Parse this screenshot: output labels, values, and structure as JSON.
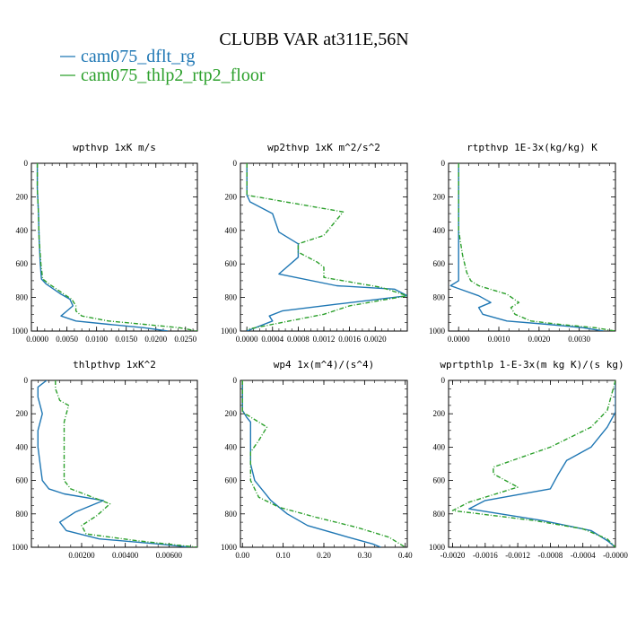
{
  "figure": {
    "title": "CLUBB VAR at311E,56N",
    "legend": [
      {
        "name": "cam075_dflt_rg",
        "color": "#1f77b4",
        "dash": "solid"
      },
      {
        "name": "cam075_thlp2_rtp2_floor",
        "color": "#2ca02c",
        "dash": "dashdot"
      }
    ]
  },
  "chart_data": [
    {
      "type": "line",
      "title": "wpthvp  1xK m/s",
      "xlim": [
        -0.001,
        0.027
      ],
      "ylim": [
        1000,
        0
      ],
      "xticks": [
        0.0,
        0.005,
        0.01,
        0.015,
        0.02,
        0.025
      ],
      "xtick_labels": [
        "0.0000",
        "0.0050",
        "0.0100",
        "0.0150",
        "0.0200",
        "0.0250"
      ],
      "yticks": [
        0,
        200,
        400,
        600,
        800,
        1000
      ],
      "ytick_labels": [
        "0",
        "200",
        "400",
        "600",
        "800",
        "1000"
      ],
      "series": [
        {
          "name": "cam075_dflt_rg",
          "x": [
            0.0,
            0.0,
            0.0002,
            0.0003,
            0.0005,
            0.0007,
            0.0015,
            0.004,
            0.0055,
            0.006,
            0.005,
            0.004,
            0.0065,
            0.012,
            0.018,
            0.022
          ],
          "y": [
            0,
            150,
            300,
            450,
            600,
            690,
            720,
            780,
            810,
            850,
            880,
            910,
            940,
            960,
            980,
            1000
          ]
        },
        {
          "name": "cam075_thlp2_rtp2_floor",
          "x": [
            0.0,
            0.0,
            0.0002,
            0.0003,
            0.0006,
            0.0009,
            0.002,
            0.0045,
            0.0058,
            0.0065,
            0.0065,
            0.0075,
            0.012,
            0.018,
            0.024,
            0.027
          ],
          "y": [
            0,
            150,
            300,
            450,
            600,
            690,
            720,
            780,
            810,
            850,
            880,
            910,
            940,
            960,
            980,
            1000
          ]
        }
      ]
    },
    {
      "type": "line",
      "title": "wp2thvp  1xK m^2/s^2",
      "xlim": [
        -0.0001,
        0.0025
      ],
      "ylim": [
        1000,
        0
      ],
      "xticks": [
        0.0,
        0.0004,
        0.0008,
        0.0012,
        0.0016,
        0.002
      ],
      "xtick_labels": [
        "0.0000",
        "0.0004",
        "0.0008",
        "0.0012",
        "0.0016",
        "0.0020"
      ],
      "yticks": [
        0,
        200,
        400,
        600,
        800,
        1000
      ],
      "ytick_labels": [
        "0",
        "200",
        "400",
        "600",
        "800",
        "1000"
      ],
      "series": [
        {
          "name": "cam075_dflt_rg",
          "x": [
            0.0,
            0.0,
            5e-05,
            0.0004,
            0.0005,
            0.0008,
            0.0008,
            0.0005,
            0.0014,
            0.0023,
            0.0025,
            0.0014,
            0.00055,
            0.00035,
            0.0004,
            0.0002,
            0.0
          ],
          "y": [
            0,
            190,
            230,
            300,
            410,
            480,
            560,
            660,
            730,
            750,
            790,
            840,
            880,
            910,
            940,
            970,
            1000
          ]
        },
        {
          "name": "cam075_thlp2_rtp2_floor",
          "x": [
            0.0,
            0.0,
            0.0015,
            0.0012,
            0.0008,
            0.0008,
            0.0011,
            0.0012,
            0.0012,
            0.0021,
            0.0025,
            0.0016,
            0.0012,
            0.0008,
            0.0004,
            0.0
          ],
          "y": [
            0,
            190,
            290,
            430,
            480,
            530,
            590,
            620,
            680,
            740,
            790,
            850,
            900,
            930,
            960,
            990
          ]
        }
      ]
    },
    {
      "type": "line",
      "title": "rtpthvp  1E-3x(kg/kg) K",
      "xlim": [
        -0.00025,
        0.0039
      ],
      "ylim": [
        1000,
        0
      ],
      "xticks": [
        0.0,
        0.001,
        0.002,
        0.003
      ],
      "xtick_labels": [
        "0.0000",
        "0.0010",
        "0.0020",
        "0.0030"
      ],
      "yticks": [
        0,
        200,
        400,
        600,
        800,
        1000
      ],
      "ytick_labels": [
        "0",
        "200",
        "400",
        "600",
        "800",
        "1000"
      ],
      "series": [
        {
          "name": "cam075_dflt_rg",
          "x": [
            0.0,
            0.0,
            0.0,
            0.0,
            0.0,
            0.0,
            -0.0002,
            0.0005,
            0.0008,
            0.0005,
            0.0006,
            0.0012,
            0.0022,
            0.0031,
            0.0036
          ],
          "y": [
            0,
            250,
            400,
            550,
            650,
            700,
            730,
            790,
            830,
            860,
            900,
            940,
            960,
            980,
            1000
          ]
        },
        {
          "name": "cam075_thlp2_rtp2_floor",
          "x": [
            0.0,
            0.0,
            0.0,
            0.0001,
            0.0002,
            0.0003,
            0.0005,
            0.0012,
            0.0015,
            0.0013,
            0.0014,
            0.0018,
            0.0025,
            0.0034,
            0.0039
          ],
          "y": [
            0,
            250,
            400,
            550,
            650,
            700,
            730,
            780,
            830,
            860,
            900,
            940,
            960,
            980,
            1000
          ]
        }
      ]
    },
    {
      "type": "line",
      "title": "thlpthvp  1xK^2",
      "xlim": [
        -0.0003,
        0.0073
      ],
      "ylim": [
        1000,
        0
      ],
      "xticks": [
        0.002,
        0.004,
        0.006
      ],
      "xtick_labels": [
        "0.00200",
        "0.00400",
        "0.00600"
      ],
      "yticks": [
        0,
        200,
        400,
        600,
        800,
        1000
      ],
      "ytick_labels": [
        "0",
        "200",
        "400",
        "600",
        "800",
        "1000"
      ],
      "series": [
        {
          "name": "cam075_dflt_rg",
          "x": [
            0.0004,
            0.0,
            0.0,
            0.0002,
            0.0,
            0.0,
            0.0001,
            0.0002,
            0.0005,
            0.0012,
            0.003,
            0.0017,
            0.001,
            0.0013,
            0.0028,
            0.0055,
            0.007
          ],
          "y": [
            0,
            40,
            100,
            200,
            300,
            400,
            500,
            600,
            650,
            680,
            720,
            790,
            850,
            900,
            950,
            980,
            1000
          ]
        },
        {
          "name": "cam075_thlp2_rtp2_floor",
          "x": [
            0.0008,
            0.0008,
            0.001,
            0.0014,
            0.0012,
            0.0012,
            0.0012,
            0.0012,
            0.0015,
            0.0033,
            0.0027,
            0.002,
            0.0022,
            0.0045,
            0.0073
          ],
          "y": [
            0,
            50,
            120,
            150,
            250,
            400,
            500,
            600,
            650,
            740,
            810,
            870,
            920,
            960,
            1000
          ]
        }
      ]
    },
    {
      "type": "line",
      "title": "wp4  1x(m^4)/(s^4)",
      "xlim": [
        -0.005,
        0.405
      ],
      "ylim": [
        1000,
        0
      ],
      "xticks": [
        0.0,
        0.1,
        0.2,
        0.3,
        0.4
      ],
      "xtick_labels": [
        "0.00",
        "0.10",
        "0.20",
        "0.30",
        "0.40"
      ],
      "yticks": [
        0,
        200,
        400,
        600,
        800,
        1000
      ],
      "ytick_labels": [
        "0",
        "200",
        "400",
        "600",
        "800",
        "1000"
      ],
      "series": [
        {
          "name": "cam075_dflt_rg",
          "x": [
            0.0,
            0.0,
            0.01,
            0.02,
            0.02,
            0.02,
            0.02,
            0.03,
            0.07,
            0.11,
            0.16,
            0.26,
            0.32,
            0.34
          ],
          "y": [
            0,
            180,
            220,
            250,
            300,
            400,
            500,
            600,
            720,
            800,
            870,
            940,
            980,
            1000
          ]
        },
        {
          "name": "cam075_thlp2_rtp2_floor",
          "x": [
            0.0,
            0.0,
            0.06,
            0.04,
            0.02,
            0.02,
            0.02,
            0.04,
            0.09,
            0.18,
            0.28,
            0.36,
            0.4
          ],
          "y": [
            0,
            190,
            280,
            360,
            430,
            500,
            600,
            700,
            760,
            820,
            880,
            940,
            1000
          ]
        }
      ]
    },
    {
      "type": "line",
      "title": "wprtpthlp  1-E-3x(m kg K)/(s kg)",
      "xlim": [
        -0.00205,
        0.0
      ],
      "ylim": [
        1000,
        0
      ],
      "xticks": [
        -0.002,
        -0.0016,
        -0.0012,
        -0.0008,
        -0.0004,
        0.0
      ],
      "xtick_labels": [
        "-0.0020",
        "-0.0016",
        "-0.0012",
        "-0.0008",
        "-0.0004",
        "-0.0000"
      ],
      "yticks": [
        0,
        200,
        400,
        600,
        800,
        1000
      ],
      "ytick_labels": [
        "0",
        "200",
        "400",
        "600",
        "800",
        "1000"
      ],
      "series": [
        {
          "name": "cam075_dflt_rg",
          "x": [
            0.0,
            0.0,
            -0.0001,
            -0.0003,
            -0.0006,
            -0.0007,
            -0.0008,
            -0.0016,
            -0.0018,
            -0.0009,
            -0.0003,
            -0.0001,
            0.0
          ],
          "y": [
            0,
            190,
            280,
            400,
            480,
            560,
            650,
            720,
            770,
            840,
            900,
            960,
            1000
          ]
        },
        {
          "name": "cam075_thlp2_rtp2_floor",
          "x": [
            0.0,
            -0.0001,
            -0.0003,
            -0.0008,
            -0.0015,
            -0.0015,
            -0.0012,
            -0.0018,
            -0.002,
            -0.001,
            -0.0004,
            -0.0001,
            0.0
          ],
          "y": [
            0,
            180,
            280,
            400,
            520,
            560,
            640,
            730,
            780,
            840,
            890,
            950,
            1000
          ]
        }
      ]
    }
  ]
}
